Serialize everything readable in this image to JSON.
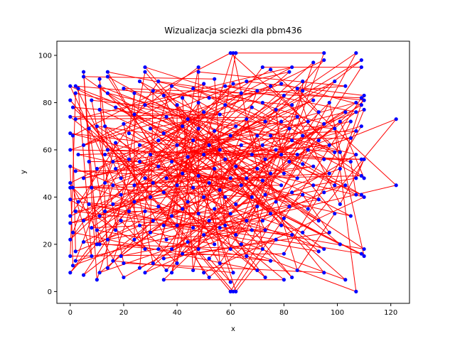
{
  "chart_data": {
    "type": "scatter",
    "title": "Wizualizacja sciezki dla pbm436",
    "xlabel": "x",
    "ylabel": "y",
    "xlim": [
      -5,
      127
    ],
    "ylim": [
      -5,
      106
    ],
    "xticks": [
      0,
      20,
      40,
      60,
      80,
      100,
      120
    ],
    "yticks": [
      0,
      20,
      40,
      60,
      80,
      100
    ],
    "grid": false,
    "colors": {
      "points": "#0000ff",
      "path": "#ff0000"
    },
    "points": [
      [
        0,
        8
      ],
      [
        0,
        15
      ],
      [
        0,
        22
      ],
      [
        0,
        29
      ],
      [
        0,
        32
      ],
      [
        0,
        39
      ],
      [
        0,
        44
      ],
      [
        0,
        46
      ],
      [
        0,
        53
      ],
      [
        0,
        60
      ],
      [
        0,
        67
      ],
      [
        0,
        74
      ],
      [
        0,
        81
      ],
      [
        0,
        87
      ],
      [
        1,
        11
      ],
      [
        1,
        25
      ],
      [
        1,
        44
      ],
      [
        1,
        66
      ],
      [
        1,
        78
      ],
      [
        2,
        13
      ],
      [
        2,
        17
      ],
      [
        2,
        34
      ],
      [
        2,
        51
      ],
      [
        2,
        73
      ],
      [
        2,
        84
      ],
      [
        2,
        87
      ],
      [
        3,
        38
      ],
      [
        3,
        58
      ],
      [
        3,
        86
      ],
      [
        5,
        7
      ],
      [
        5,
        21
      ],
      [
        5,
        30
      ],
      [
        5,
        48
      ],
      [
        5,
        62
      ],
      [
        5,
        91
      ],
      [
        5,
        93
      ],
      [
        7,
        37
      ],
      [
        7,
        55
      ],
      [
        7,
        69
      ],
      [
        8,
        15
      ],
      [
        8,
        27
      ],
      [
        8,
        44
      ],
      [
        8,
        81
      ],
      [
        10,
        5
      ],
      [
        10,
        20
      ],
      [
        10,
        26
      ],
      [
        10,
        52
      ],
      [
        10,
        70
      ],
      [
        11,
        8
      ],
      [
        11,
        20
      ],
      [
        11,
        32
      ],
      [
        11,
        77
      ],
      [
        11,
        87
      ],
      [
        11,
        90
      ],
      [
        13,
        34
      ],
      [
        13,
        46
      ],
      [
        13,
        58
      ],
      [
        13,
        70
      ],
      [
        14,
        10
      ],
      [
        14,
        22
      ],
      [
        14,
        60
      ],
      [
        14,
        84
      ],
      [
        14,
        91
      ],
      [
        14,
        93
      ],
      [
        16,
        13
      ],
      [
        16,
        37
      ],
      [
        16,
        45
      ],
      [
        16,
        55
      ],
      [
        17,
        26
      ],
      [
        17,
        52
      ],
      [
        17,
        63
      ],
      [
        17,
        78
      ],
      [
        19,
        15
      ],
      [
        19,
        30
      ],
      [
        19,
        41
      ],
      [
        19,
        48
      ],
      [
        20,
        6
      ],
      [
        20,
        12
      ],
      [
        20,
        71
      ],
      [
        20,
        86
      ],
      [
        22,
        34
      ],
      [
        22,
        56
      ],
      [
        22,
        67
      ],
      [
        24,
        22
      ],
      [
        24,
        38
      ],
      [
        24,
        45
      ],
      [
        24,
        75
      ],
      [
        24,
        84
      ],
      [
        26,
        10
      ],
      [
        26,
        28
      ],
      [
        26,
        55
      ],
      [
        26,
        62
      ],
      [
        26,
        89
      ],
      [
        28,
        8
      ],
      [
        28,
        18
      ],
      [
        28,
        34
      ],
      [
        28,
        48
      ],
      [
        28,
        79
      ],
      [
        28,
        93
      ],
      [
        28,
        95
      ],
      [
        30,
        25
      ],
      [
        30,
        40
      ],
      [
        30,
        58
      ],
      [
        30,
        69
      ],
      [
        31,
        12
      ],
      [
        31,
        30
      ],
      [
        31,
        46
      ],
      [
        31,
        85
      ],
      [
        33,
        18
      ],
      [
        33,
        36
      ],
      [
        33,
        53
      ],
      [
        33,
        64
      ],
      [
        33,
        89
      ],
      [
        35,
        5
      ],
      [
        35,
        14
      ],
      [
        35,
        28
      ],
      [
        35,
        42
      ],
      [
        35,
        67
      ],
      [
        35,
        83
      ],
      [
        36,
        9
      ],
      [
        36,
        22
      ],
      [
        36,
        48
      ],
      [
        36,
        74
      ],
      [
        38,
        8
      ],
      [
        38,
        18
      ],
      [
        38,
        32
      ],
      [
        38,
        55
      ],
      [
        38,
        87
      ],
      [
        40,
        12
      ],
      [
        40,
        28
      ],
      [
        40,
        45
      ],
      [
        40,
        62
      ],
      [
        40,
        79
      ],
      [
        42,
        16
      ],
      [
        42,
        35
      ],
      [
        42,
        50
      ],
      [
        42,
        70
      ],
      [
        42,
        82
      ],
      [
        44,
        21
      ],
      [
        44,
        38
      ],
      [
        44,
        57
      ],
      [
        44,
        73
      ],
      [
        46,
        9
      ],
      [
        46,
        27
      ],
      [
        46,
        44
      ],
      [
        46,
        64
      ],
      [
        46,
        86
      ],
      [
        48,
        18
      ],
      [
        48,
        33
      ],
      [
        48,
        49
      ],
      [
        48,
        69
      ],
      [
        48,
        80
      ],
      [
        48,
        93
      ],
      [
        48,
        95
      ],
      [
        50,
        8
      ],
      [
        50,
        24
      ],
      [
        50,
        40
      ],
      [
        50,
        58
      ],
      [
        50,
        76
      ],
      [
        50,
        88
      ],
      [
        52,
        6
      ],
      [
        52,
        14
      ],
      [
        52,
        30
      ],
      [
        52,
        46
      ],
      [
        52,
        62
      ],
      [
        52,
        82
      ],
      [
        54,
        20
      ],
      [
        54,
        35
      ],
      [
        54,
        52
      ],
      [
        54,
        68
      ],
      [
        54,
        90
      ],
      [
        56,
        12
      ],
      [
        56,
        27
      ],
      [
        56,
        43
      ],
      [
        56,
        60
      ],
      [
        56,
        75
      ],
      [
        58,
        28
      ],
      [
        58,
        40
      ],
      [
        58,
        56
      ],
      [
        58,
        79
      ],
      [
        58,
        87
      ],
      [
        60,
        0
      ],
      [
        60,
        4
      ],
      [
        60,
        18
      ],
      [
        60,
        33
      ],
      [
        60,
        48
      ],
      [
        60,
        66
      ],
      [
        60,
        101
      ],
      [
        61,
        0
      ],
      [
        61,
        8
      ],
      [
        61,
        88
      ],
      [
        61,
        101
      ],
      [
        62,
        0
      ],
      [
        62,
        24
      ],
      [
        62,
        37
      ],
      [
        62,
        53
      ],
      [
        62,
        70
      ],
      [
        62,
        101
      ],
      [
        64,
        20
      ],
      [
        64,
        45
      ],
      [
        64,
        62
      ],
      [
        64,
        84
      ],
      [
        66,
        15
      ],
      [
        66,
        30
      ],
      [
        66,
        48
      ],
      [
        66,
        73
      ],
      [
        66,
        89
      ],
      [
        68,
        26
      ],
      [
        68,
        40
      ],
      [
        68,
        58
      ],
      [
        68,
        78
      ],
      [
        70,
        9
      ],
      [
        70,
        36
      ],
      [
        70,
        52
      ],
      [
        70,
        66
      ],
      [
        70,
        85
      ],
      [
        72,
        18
      ],
      [
        72,
        30
      ],
      [
        72,
        47
      ],
      [
        72,
        62
      ],
      [
        72,
        80
      ],
      [
        72,
        95
      ],
      [
        73,
        6
      ],
      [
        73,
        26
      ],
      [
        73,
        41
      ],
      [
        73,
        56
      ],
      [
        73,
        72
      ],
      [
        75,
        13
      ],
      [
        75,
        33
      ],
      [
        75,
        50
      ],
      [
        75,
        66
      ],
      [
        75,
        87
      ],
      [
        75,
        94
      ],
      [
        77,
        22
      ],
      [
        77,
        38
      ],
      [
        77,
        60
      ],
      [
        77,
        77
      ],
      [
        79,
        28
      ],
      [
        79,
        45
      ],
      [
        79,
        58
      ],
      [
        79,
        72
      ],
      [
        79,
        88
      ],
      [
        80,
        5
      ],
      [
        80,
        16
      ],
      [
        80,
        31
      ],
      [
        80,
        50
      ],
      [
        80,
        83
      ],
      [
        82,
        36
      ],
      [
        82,
        55
      ],
      [
        82,
        69
      ],
      [
        82,
        93
      ],
      [
        83,
        6
      ],
      [
        83,
        24
      ],
      [
        83,
        42
      ],
      [
        83,
        64
      ],
      [
        83,
        79
      ],
      [
        83,
        95
      ],
      [
        85,
        9
      ],
      [
        85,
        48
      ],
      [
        85,
        58
      ],
      [
        85,
        74
      ],
      [
        85,
        86
      ],
      [
        87,
        25
      ],
      [
        87,
        41
      ],
      [
        87,
        54
      ],
      [
        87,
        66
      ],
      [
        87,
        85
      ],
      [
        87,
        89
      ],
      [
        89,
        35
      ],
      [
        89,
        60
      ],
      [
        89,
        72
      ],
      [
        91,
        45
      ],
      [
        91,
        53
      ],
      [
        91,
        81
      ],
      [
        91,
        97
      ],
      [
        93,
        17
      ],
      [
        93,
        30
      ],
      [
        93,
        39
      ],
      [
        93,
        64
      ],
      [
        93,
        76
      ],
      [
        95,
        8
      ],
      [
        95,
        18
      ],
      [
        95,
        42
      ],
      [
        95,
        56
      ],
      [
        95,
        71
      ],
      [
        95,
        98
      ],
      [
        95,
        101
      ],
      [
        97,
        25
      ],
      [
        97,
        50
      ],
      [
        97,
        62
      ],
      [
        97,
        80
      ],
      [
        99,
        33
      ],
      [
        99,
        45
      ],
      [
        99,
        59
      ],
      [
        99,
        69
      ],
      [
        99,
        89
      ],
      [
        101,
        20
      ],
      [
        101,
        37
      ],
      [
        101,
        52
      ],
      [
        101,
        59
      ],
      [
        101,
        72
      ],
      [
        103,
        5
      ],
      [
        103,
        45
      ],
      [
        103,
        76
      ],
      [
        103,
        87
      ],
      [
        105,
        32
      ],
      [
        105,
        55
      ],
      [
        105,
        65
      ],
      [
        105,
        72
      ],
      [
        107,
        0
      ],
      [
        107,
        41
      ],
      [
        107,
        48
      ],
      [
        107,
        58
      ],
      [
        107,
        68
      ],
      [
        107,
        76
      ],
      [
        107,
        80
      ],
      [
        107,
        101
      ],
      [
        109,
        16
      ],
      [
        109,
        41
      ],
      [
        109,
        49
      ],
      [
        109,
        56
      ],
      [
        109,
        70
      ],
      [
        109,
        79
      ],
      [
        109,
        82
      ],
      [
        109,
        95
      ],
      [
        109,
        98
      ],
      [
        110,
        15
      ],
      [
        110,
        18
      ],
      [
        110,
        40
      ],
      [
        110,
        48
      ],
      [
        110,
        56
      ],
      [
        110,
        77
      ],
      [
        110,
        81
      ],
      [
        110,
        83
      ],
      [
        122,
        45
      ],
      [
        122,
        73
      ]
    ],
    "path_order_seed": 436
  }
}
